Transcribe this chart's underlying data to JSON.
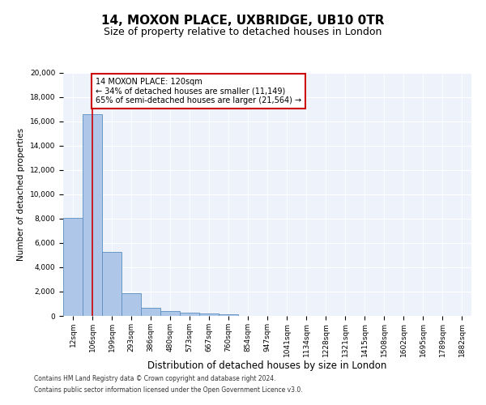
{
  "title1": "14, MOXON PLACE, UXBRIDGE, UB10 0TR",
  "title2": "Size of property relative to detached houses in London",
  "xlabel": "Distribution of detached houses by size in London",
  "ylabel": "Number of detached properties",
  "categories": [
    "12sqm",
    "106sqm",
    "199sqm",
    "293sqm",
    "386sqm",
    "480sqm",
    "573sqm",
    "667sqm",
    "760sqm",
    "854sqm",
    "947sqm",
    "1041sqm",
    "1134sqm",
    "1228sqm",
    "1321sqm",
    "1415sqm",
    "1508sqm",
    "1602sqm",
    "1695sqm",
    "1789sqm",
    "1882sqm"
  ],
  "values": [
    8100,
    16600,
    5300,
    1850,
    700,
    370,
    280,
    210,
    160,
    0,
    0,
    0,
    0,
    0,
    0,
    0,
    0,
    0,
    0,
    0,
    0
  ],
  "bar_color": "#aec6e8",
  "bar_edge_color": "#5a8fc2",
  "vline_x": 1,
  "vline_color": "#cc0000",
  "annotation_text": "14 MOXON PLACE: 120sqm\n← 34% of detached houses are smaller (11,149)\n65% of semi-detached houses are larger (21,564) →",
  "annotation_box_color": "#ffffff",
  "annotation_box_edge_color": "#cc0000",
  "ylim": [
    0,
    20000
  ],
  "yticks": [
    0,
    2000,
    4000,
    6000,
    8000,
    10000,
    12000,
    14000,
    16000,
    18000,
    20000
  ],
  "background_color": "#eef2fa",
  "footer1": "Contains HM Land Registry data © Crown copyright and database right 2024.",
  "footer2": "Contains public sector information licensed under the Open Government Licence v3.0.",
  "title1_fontsize": 11,
  "title2_fontsize": 9,
  "xlabel_fontsize": 8.5,
  "ylabel_fontsize": 7.5,
  "tick_fontsize": 6.5,
  "annotation_fontsize": 7.0,
  "footer_fontsize": 5.5
}
